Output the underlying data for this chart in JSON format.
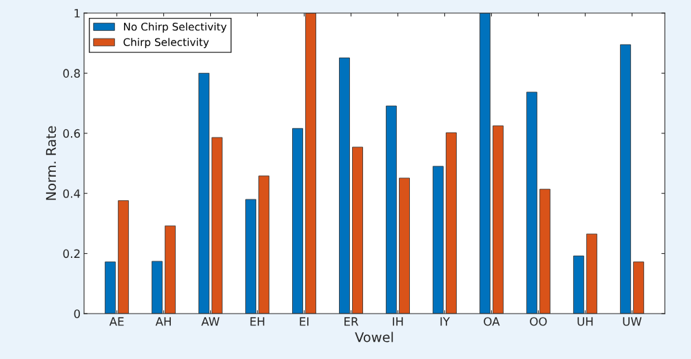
{
  "chart_data": {
    "type": "bar",
    "xlabel": "Vowel",
    "ylabel": "Norm. Rate",
    "categories": [
      "AE",
      "AH",
      "AW",
      "EH",
      "EI",
      "ER",
      "IH",
      "IY",
      "OA",
      "OO",
      "UH",
      "UW"
    ],
    "series": [
      {
        "name": "No Chirp Selectivity",
        "color": "#0072bd",
        "values": [
          0.172,
          0.174,
          0.8,
          0.38,
          0.616,
          0.851,
          0.691,
          0.49,
          1.0,
          0.737,
          0.192,
          0.895
        ]
      },
      {
        "name": "Chirp Selectivity",
        "color": "#d95319",
        "values": [
          0.376,
          0.292,
          0.586,
          0.458,
          1.0,
          0.554,
          0.451,
          0.602,
          0.625,
          0.414,
          0.265,
          0.172
        ]
      }
    ],
    "ylim": [
      0,
      1
    ],
    "yticks": [
      0,
      0.2,
      0.4,
      0.6,
      0.8,
      1
    ],
    "grid": false,
    "legend": "top left"
  }
}
